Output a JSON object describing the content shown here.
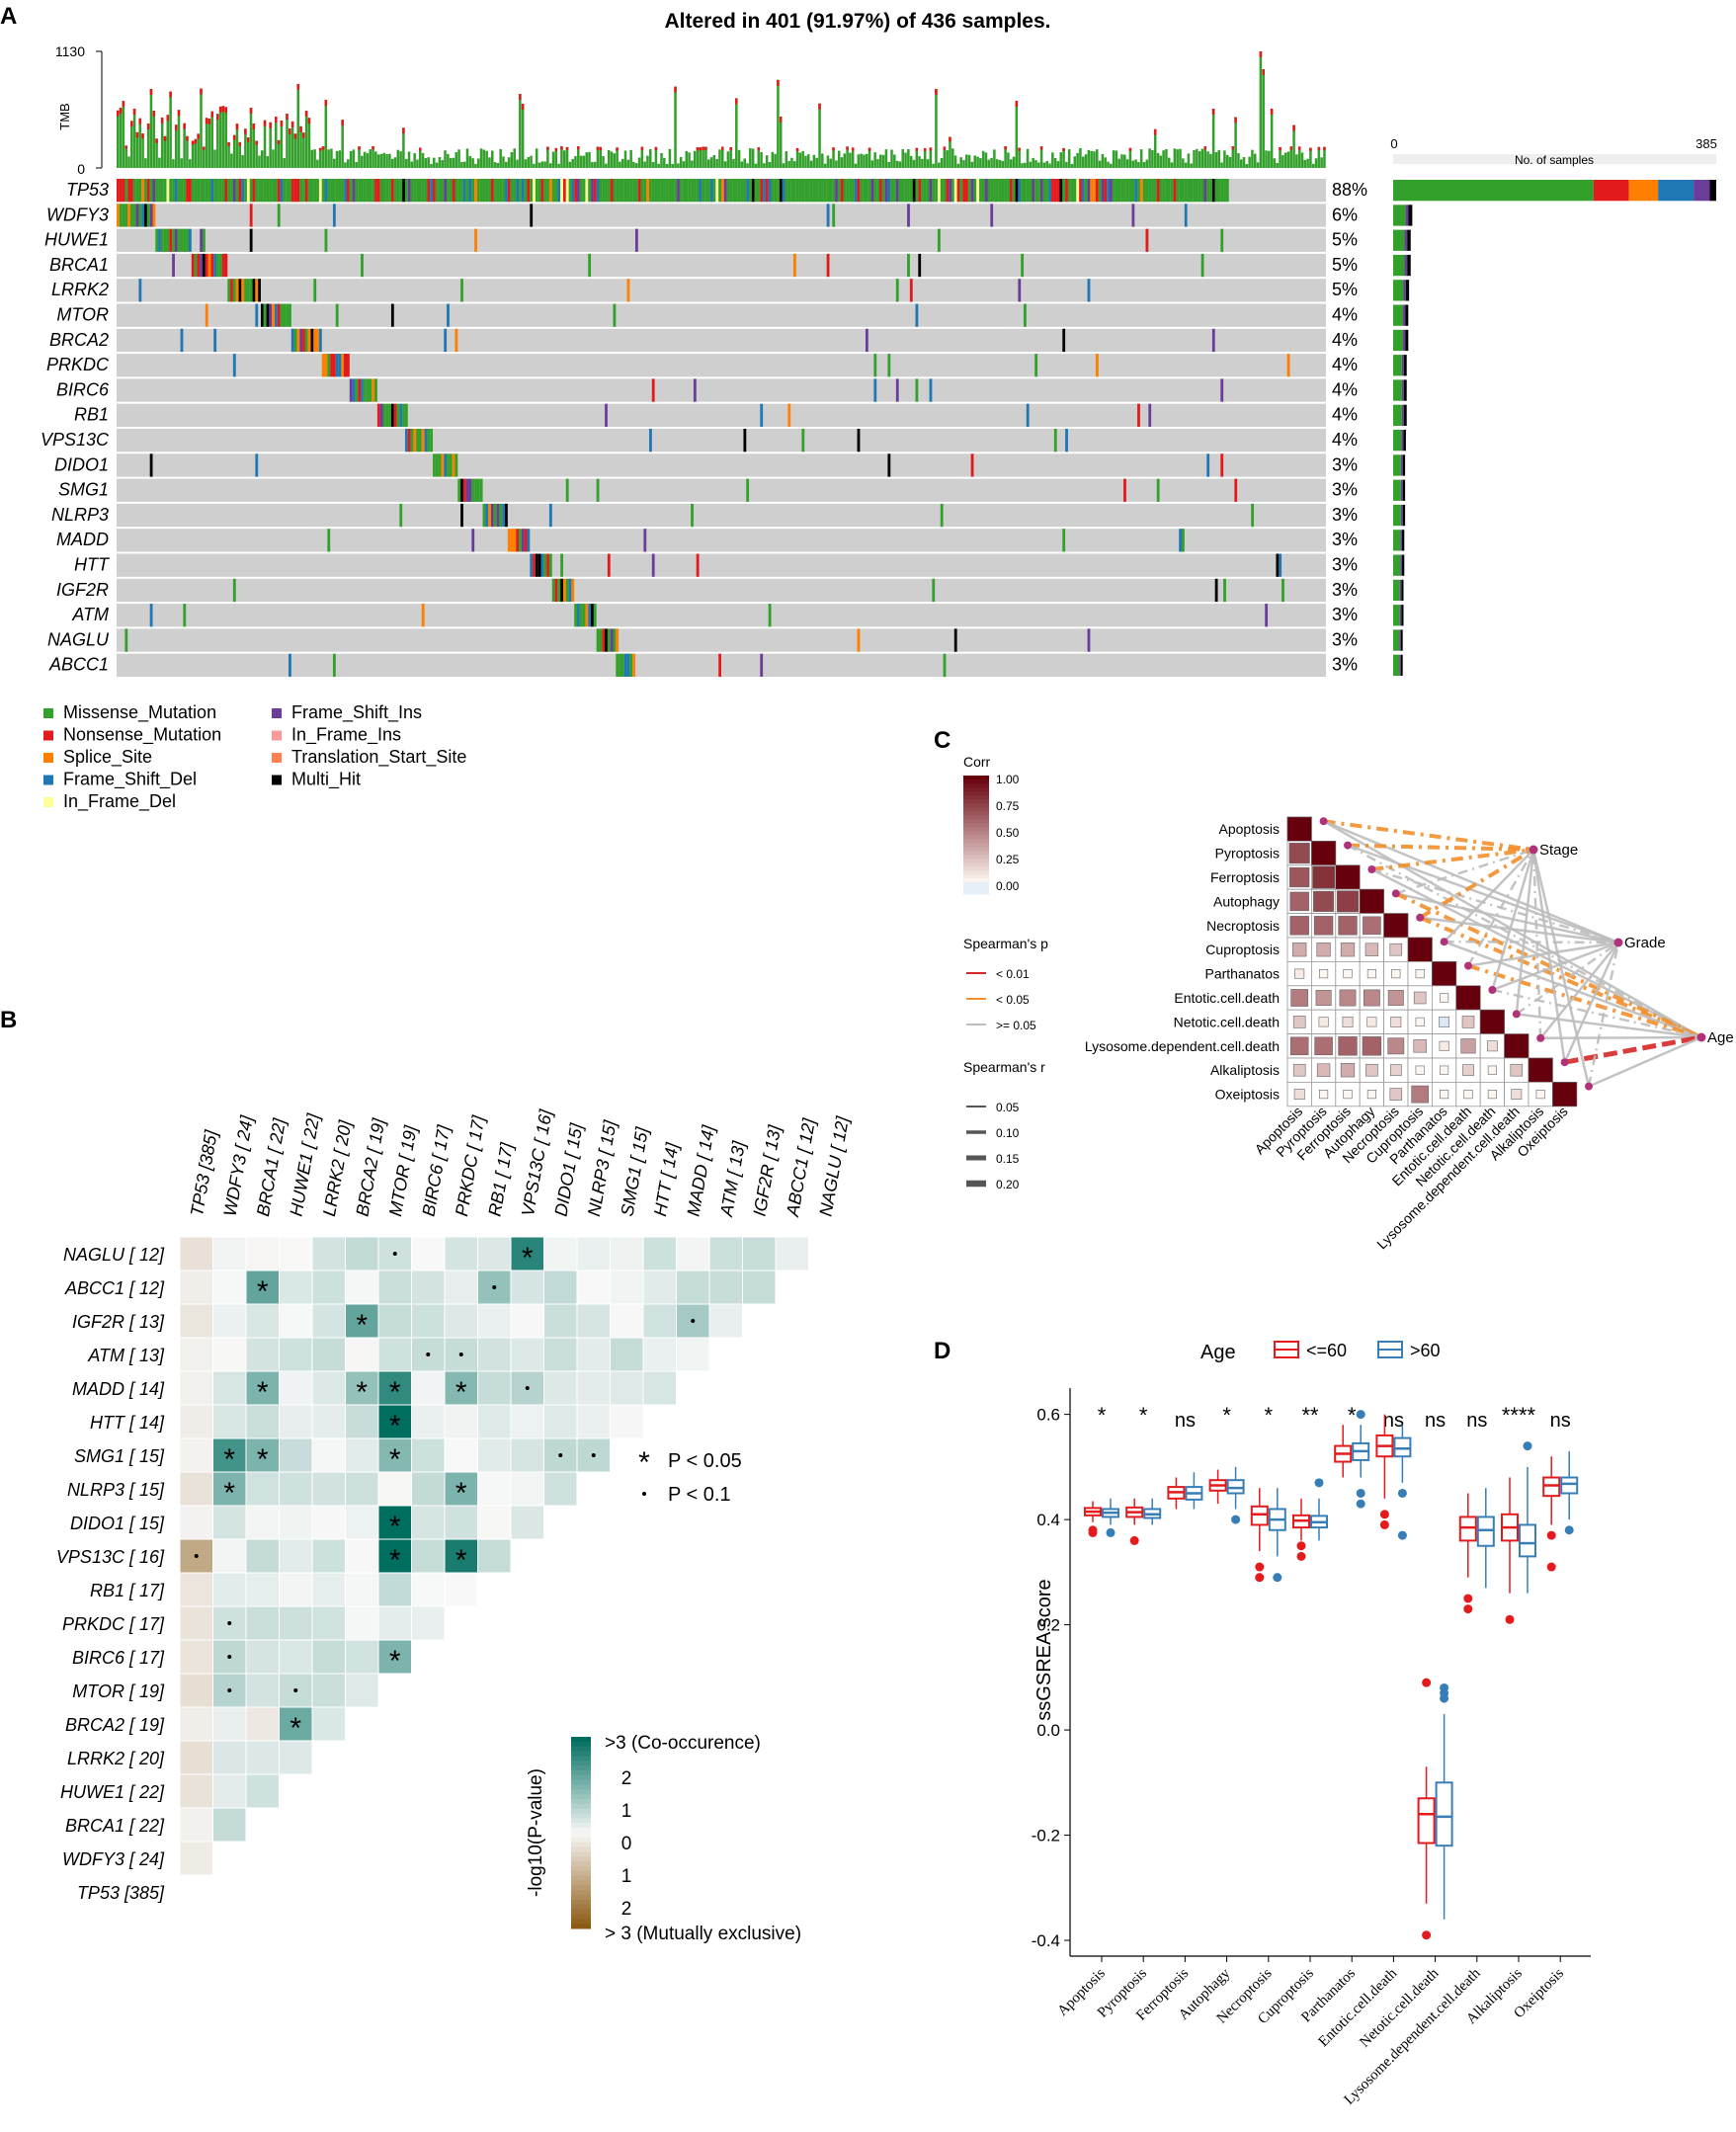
{
  "panels": {
    "a": "A",
    "b": "B",
    "c": "C",
    "d": "D"
  },
  "oncoplot": {
    "title": "Altered in 401 (91.97%) of 436 samples.",
    "tmb_label": "TMB",
    "tmb_max": "1130",
    "tmb_min": "0",
    "side_axis_min": "0",
    "side_axis_max": "385",
    "side_axis_label": "No. of samples",
    "genes": [
      {
        "name": "TP53",
        "pct": "88%",
        "count": 385
      },
      {
        "name": "WDFY3",
        "pct": "6%",
        "count": 24
      },
      {
        "name": "HUWE1",
        "pct": "5%",
        "count": 22
      },
      {
        "name": "BRCA1",
        "pct": "5%",
        "count": 22
      },
      {
        "name": "LRRK2",
        "pct": "5%",
        "count": 20
      },
      {
        "name": "MTOR",
        "pct": "4%",
        "count": 19
      },
      {
        "name": "BRCA2",
        "pct": "4%",
        "count": 19
      },
      {
        "name": "PRKDC",
        "pct": "4%",
        "count": 17
      },
      {
        "name": "BIRC6",
        "pct": "4%",
        "count": 17
      },
      {
        "name": "RB1",
        "pct": "4%",
        "count": 17
      },
      {
        "name": "VPS13C",
        "pct": "4%",
        "count": 16
      },
      {
        "name": "DIDO1",
        "pct": "3%",
        "count": 15
      },
      {
        "name": "SMG1",
        "pct": "3%",
        "count": 15
      },
      {
        "name": "NLRP3",
        "pct": "3%",
        "count": 15
      },
      {
        "name": "MADD",
        "pct": "3%",
        "count": 14
      },
      {
        "name": "HTT",
        "pct": "3%",
        "count": 14
      },
      {
        "name": "IGF2R",
        "pct": "3%",
        "count": 13
      },
      {
        "name": "ATM",
        "pct": "3%",
        "count": 13
      },
      {
        "name": "NAGLU",
        "pct": "3%",
        "count": 12
      },
      {
        "name": "ABCC1",
        "pct": "3%",
        "count": 12
      }
    ],
    "legend": [
      {
        "label": "Missense_Mutation",
        "color": "#33a02c"
      },
      {
        "label": "Nonsense_Mutation",
        "color": "#e31a1c"
      },
      {
        "label": "Splice_Site",
        "color": "#ff7f00"
      },
      {
        "label": "Frame_Shift_Del",
        "color": "#1f78b4"
      },
      {
        "label": "In_Frame_Del",
        "color": "#ffff99"
      },
      {
        "label": "Frame_Shift_Ins",
        "color": "#6a3d9a"
      },
      {
        "label": "In_Frame_Ins",
        "color": "#fb9a99"
      },
      {
        "label": "Translation_Start_Site",
        "color": "#ff7f50"
      },
      {
        "label": "Multi_Hit",
        "color": "#000000"
      }
    ]
  },
  "somatic": {
    "cols": [
      "TP53 [385]",
      "WDFY3 [ 24]",
      "BRCA1 [ 22]",
      "HUWE1 [ 22]",
      "LRRK2 [ 20]",
      "BRCA2 [ 19]",
      "MTOR [ 19]",
      "BIRC6 [ 17]",
      "PRKDC [ 17]",
      "RB1 [ 17]",
      "VPS13C [ 16]",
      "DIDO1 [ 15]",
      "NLRP3 [ 15]",
      "SMG1 [ 15]",
      "HTT [ 14]",
      "MADD [ 14]",
      "ATM [ 13]",
      "IGF2R [ 13]",
      "ABCC1 [ 12]",
      "NAGLU [ 12]"
    ],
    "rows": [
      "NAGLU [ 12]",
      "ABCC1 [ 12]",
      "IGF2R [ 13]",
      "ATM [ 13]",
      "MADD [ 14]",
      "HTT [ 14]",
      "SMG1 [ 15]",
      "NLRP3 [ 15]",
      "DIDO1 [ 15]",
      "VPS13C [ 16]",
      "RB1 [ 17]",
      "PRKDC [ 17]",
      "BIRC6 [ 17]",
      "MTOR [ 19]",
      "BRCA2 [ 19]",
      "LRRK2 [ 20]",
      "HUWE1 [ 22]",
      "BRCA1 [ 22]",
      "WDFY3 [ 24]",
      "TP53 [385]"
    ],
    "star_legend": "P < 0.05",
    "dot_legend": "P < 0.1",
    "colorbar_title": "-log10(P-value)",
    "colorbar_top": ">3 (Co-occurence)",
    "colorbar_bottom": "> 3 (Mutually exclusive)",
    "colorbar_ticks": [
      "2",
      "1",
      "0",
      "1",
      "2"
    ]
  },
  "corr": {
    "labels": [
      "Apoptosis",
      "Pyroptosis",
      "Ferroptosis",
      "Autophagy",
      "Necroptosis",
      "Cuproptosis",
      "Parthanatos",
      "Entotic.cell.death",
      "Netotic.cell.death",
      "Lysosome.dependent.cell.death",
      "Alkaliptosis",
      "Oxeiptosis"
    ],
    "targets": [
      "Stage",
      "Grade",
      "Age"
    ],
    "legend_title": "Corr",
    "legend_ticks": [
      "1.00",
      "0.75",
      "0.50",
      "0.25",
      "0.00"
    ],
    "p_title": "Spearman's p",
    "p_items": [
      "< 0.01",
      "< 0.05",
      ">= 0.05"
    ],
    "r_title": "Spearman's r",
    "r_items": [
      "0.05",
      "0.10",
      "0.15",
      "0.20"
    ]
  },
  "chart_data": {
    "type": "box",
    "title": "",
    "legend_title": "Age",
    "groups": [
      "<=60",
      ">60"
    ],
    "group_colors": [
      "#e41a1c",
      "#377eb8"
    ],
    "ylabel": "ssGSREA score",
    "ylim": [
      -0.43,
      0.65
    ],
    "yticks": [
      "0.6",
      "0.4",
      "0.2",
      "0.0",
      "-0.2",
      "-0.4"
    ],
    "categories": [
      "Apoptosis",
      "Pyroptosis",
      "Ferroptosis",
      "Autophagy",
      "Necroptosis",
      "Cuproptosis",
      "Parthanatos",
      "Entotic.cell.death",
      "Netotic.cell.death",
      "Lysosome.dependent.cell.death",
      "Alkaliptosis",
      "Oxeiptosis"
    ],
    "significance": [
      "*",
      "*",
      "ns",
      "*",
      "*",
      "**",
      "*",
      "ns",
      "ns",
      "ns",
      "****",
      "ns"
    ],
    "series": [
      {
        "name": "<=60",
        "boxes": [
          {
            "lo": 0.395,
            "q1": 0.408,
            "med": 0.415,
            "q3": 0.422,
            "hi": 0.435,
            "out": [
              0.38,
              0.375
            ]
          },
          {
            "lo": 0.39,
            "q1": 0.405,
            "med": 0.414,
            "q3": 0.423,
            "hi": 0.44,
            "out": [
              0.36
            ]
          },
          {
            "lo": 0.42,
            "q1": 0.44,
            "med": 0.452,
            "q3": 0.462,
            "hi": 0.48,
            "out": []
          },
          {
            "lo": 0.43,
            "q1": 0.455,
            "med": 0.465,
            "q3": 0.475,
            "hi": 0.495,
            "out": []
          },
          {
            "lo": 0.34,
            "q1": 0.39,
            "med": 0.41,
            "q3": 0.425,
            "hi": 0.46,
            "out": [
              0.31,
              0.29
            ]
          },
          {
            "lo": 0.36,
            "q1": 0.385,
            "med": 0.398,
            "q3": 0.408,
            "hi": 0.44,
            "out": [
              0.35,
              0.33
            ]
          },
          {
            "lo": 0.48,
            "q1": 0.51,
            "med": 0.525,
            "q3": 0.54,
            "hi": 0.58,
            "out": []
          },
          {
            "lo": 0.44,
            "q1": 0.52,
            "med": 0.54,
            "q3": 0.56,
            "hi": 0.6,
            "out": [
              0.41,
              0.39
            ]
          },
          {
            "lo": -0.33,
            "q1": -0.215,
            "med": -0.16,
            "q3": -0.13,
            "hi": -0.07,
            "out": [
              0.09,
              -0.39
            ]
          },
          {
            "lo": 0.29,
            "q1": 0.36,
            "med": 0.385,
            "q3": 0.405,
            "hi": 0.45,
            "out": [
              0.25,
              0.23
            ]
          },
          {
            "lo": 0.26,
            "q1": 0.36,
            "med": 0.385,
            "q3": 0.41,
            "hi": 0.48,
            "out": [
              0.21
            ]
          },
          {
            "lo": 0.39,
            "q1": 0.445,
            "med": 0.465,
            "q3": 0.48,
            "hi": 0.52,
            "out": [
              0.37,
              0.31
            ]
          }
        ]
      },
      {
        "name": ">60",
        "boxes": [
          {
            "lo": 0.39,
            "q1": 0.405,
            "med": 0.413,
            "q3": 0.42,
            "hi": 0.44,
            "out": [
              0.375
            ]
          },
          {
            "lo": 0.39,
            "q1": 0.403,
            "med": 0.41,
            "q3": 0.42,
            "hi": 0.44,
            "out": []
          },
          {
            "lo": 0.42,
            "q1": 0.438,
            "med": 0.45,
            "q3": 0.462,
            "hi": 0.49,
            "out": []
          },
          {
            "lo": 0.42,
            "q1": 0.45,
            "med": 0.46,
            "q3": 0.475,
            "hi": 0.5,
            "out": [
              0.4
            ]
          },
          {
            "lo": 0.33,
            "q1": 0.38,
            "med": 0.4,
            "q3": 0.42,
            "hi": 0.46,
            "out": [
              0.29
            ]
          },
          {
            "lo": 0.36,
            "q1": 0.385,
            "med": 0.395,
            "q3": 0.407,
            "hi": 0.44,
            "out": [
              0.47
            ]
          },
          {
            "lo": 0.48,
            "q1": 0.513,
            "med": 0.53,
            "q3": 0.545,
            "hi": 0.58,
            "out": [
              0.6,
              0.45,
              0.43
            ]
          },
          {
            "lo": 0.47,
            "q1": 0.52,
            "med": 0.535,
            "q3": 0.555,
            "hi": 0.58,
            "out": [
              0.45,
              0.37
            ]
          },
          {
            "lo": -0.36,
            "q1": -0.22,
            "med": -0.165,
            "q3": -0.1,
            "hi": 0.03,
            "out": [
              0.06,
              0.07,
              0.08
            ]
          },
          {
            "lo": 0.27,
            "q1": 0.35,
            "med": 0.38,
            "q3": 0.405,
            "hi": 0.46,
            "out": []
          },
          {
            "lo": 0.26,
            "q1": 0.33,
            "med": 0.355,
            "q3": 0.39,
            "hi": 0.5,
            "out": [
              0.54
            ]
          },
          {
            "lo": 0.4,
            "q1": 0.45,
            "med": 0.468,
            "q3": 0.48,
            "hi": 0.53,
            "out": [
              0.38
            ]
          }
        ]
      }
    ]
  }
}
